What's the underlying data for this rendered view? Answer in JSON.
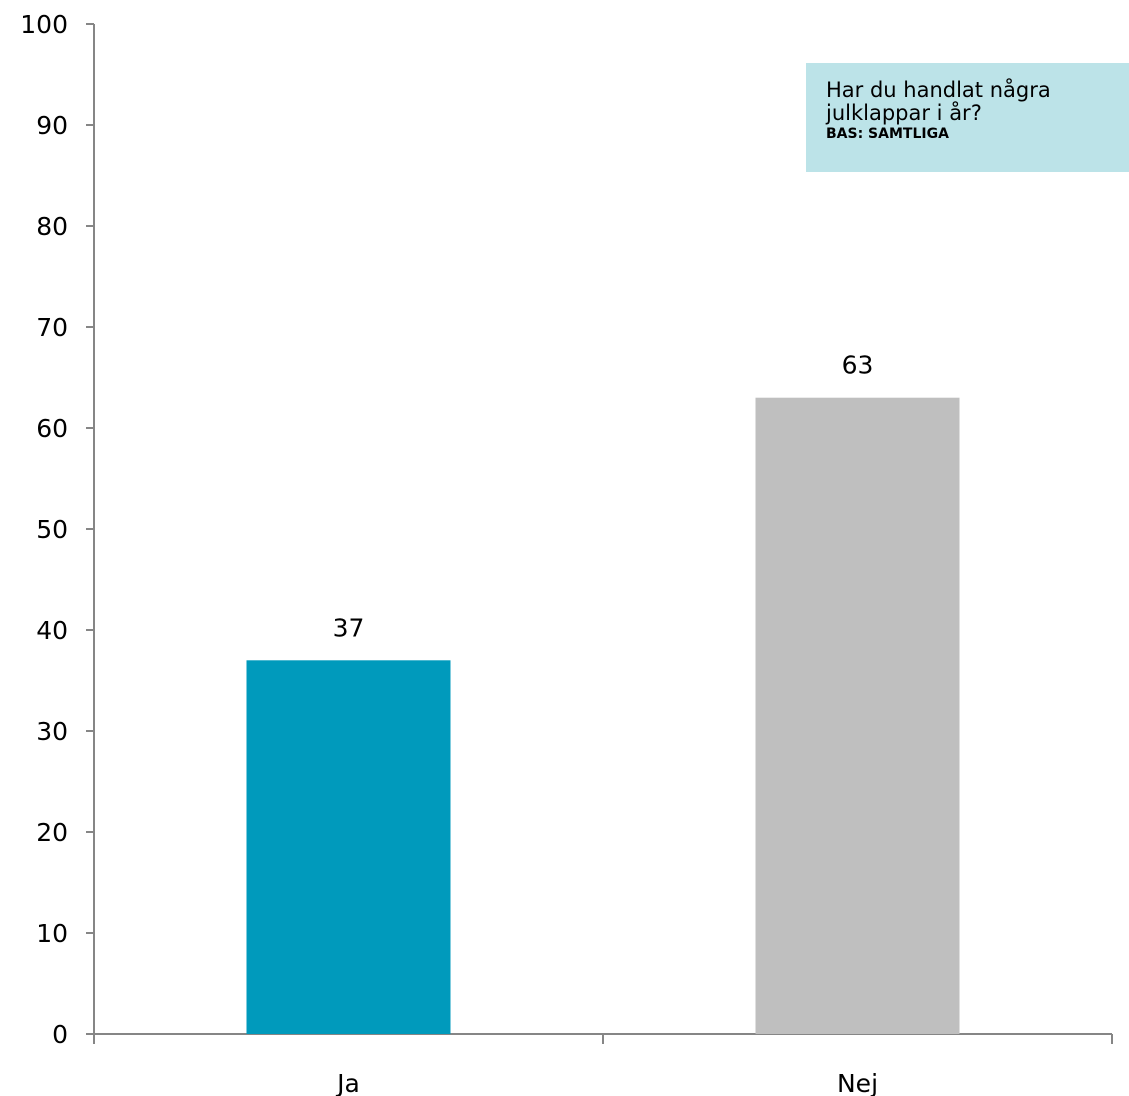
{
  "chart_data": {
    "type": "bar",
    "categories": [
      "Ja",
      "Nej"
    ],
    "values": [
      37,
      63
    ],
    "value_labels": [
      "37",
      "63"
    ],
    "colors": [
      "#009abc",
      "#bfbfbf"
    ],
    "ylim": [
      0,
      100
    ],
    "yticks": [
      "0",
      "10",
      "20",
      "30",
      "40",
      "50",
      "60",
      "70",
      "80",
      "90",
      "100"
    ],
    "grid": false,
    "legend": "none"
  },
  "question_box": {
    "question": "Har du handlat några julklappar i år?",
    "base": "BAS: SAMTLIGA",
    "background": "#bce3e8"
  },
  "axis_color": "#868686"
}
